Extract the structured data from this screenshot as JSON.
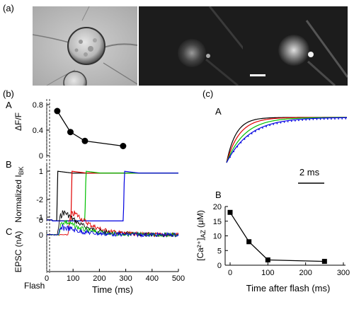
{
  "figure": {
    "label_a": "(a)",
    "label_b": "(b)",
    "label_c": "(c)"
  },
  "chart_data": [
    {
      "id": "b-A",
      "panel": "A",
      "type": "line",
      "ylabel": "ΔF/F",
      "ylim": [
        0,
        0.8
      ],
      "yticks": [
        "0",
        "0.4",
        "0.8"
      ],
      "series": [
        {
          "x": [
            40,
            90,
            145,
            290
          ],
          "y": [
            0.7,
            0.37,
            0.23,
            0.15
          ],
          "color": "#000000",
          "marker": "circle"
        }
      ]
    },
    {
      "id": "b-B",
      "panel": "B",
      "type": "line",
      "ylabel": "Normalized I",
      "ylabel_sub": "BK",
      "ylim": [
        0,
        1
      ],
      "yticks": [
        "0",
        "1"
      ],
      "series": [
        {
          "color": "#000000",
          "step_at": 38
        },
        {
          "color": "#e00000",
          "step_at": 92
        },
        {
          "color": "#00c000",
          "step_at": 145
        },
        {
          "color": "#0000e0",
          "step_at": 291
        }
      ]
    },
    {
      "id": "b-C",
      "panel": "C",
      "type": "line",
      "ylabel": "EPSC (nA)",
      "xlabel": "Time (ms)",
      "ylim": [
        -2.2,
        0
      ],
      "yticks": [
        "0",
        "-1",
        "-2"
      ],
      "xticks": [
        "0",
        "100",
        "200",
        "300",
        "400",
        "500"
      ],
      "annotation": "Flash",
      "series": [
        {
          "color": "#000000",
          "onset": 42,
          "peak": -2.05
        },
        {
          "color": "#e00000",
          "onset": 80,
          "peak": -1.95
        },
        {
          "color": "#00c000",
          "onset": 45,
          "peak": -1.2
        },
        {
          "color": "#0000e0",
          "onset": 45,
          "peak": -0.65
        }
      ]
    },
    {
      "id": "c-A",
      "panel": "A",
      "type": "line",
      "scalebar": "2 ms",
      "series": [
        {
          "color": "#000000",
          "tau": 0.55
        },
        {
          "color": "#e00000",
          "tau": 0.75
        },
        {
          "color": "#00c000",
          "tau": 1.05
        },
        {
          "color": "#0000e0",
          "tau": 1.35
        }
      ]
    },
    {
      "id": "c-B",
      "panel": "B",
      "type": "line",
      "ylabel": "[Ca²⁺]",
      "ylabel_sub": "AZ",
      "ylabel_unit": "(μM)",
      "xlabel": "Time after flash (ms)",
      "ylim": [
        0,
        20
      ],
      "xlim": [
        0,
        300
      ],
      "yticks": [
        "0",
        "5",
        "10",
        "15",
        "20"
      ],
      "xticks": [
        "0",
        "100",
        "200",
        "300"
      ],
      "series": [
        {
          "x": [
            0,
            50,
            100,
            250
          ],
          "y": [
            18,
            8,
            1.8,
            1.3
          ],
          "color": "#000000",
          "marker": "square"
        }
      ]
    }
  ],
  "scale_bar_a": ""
}
